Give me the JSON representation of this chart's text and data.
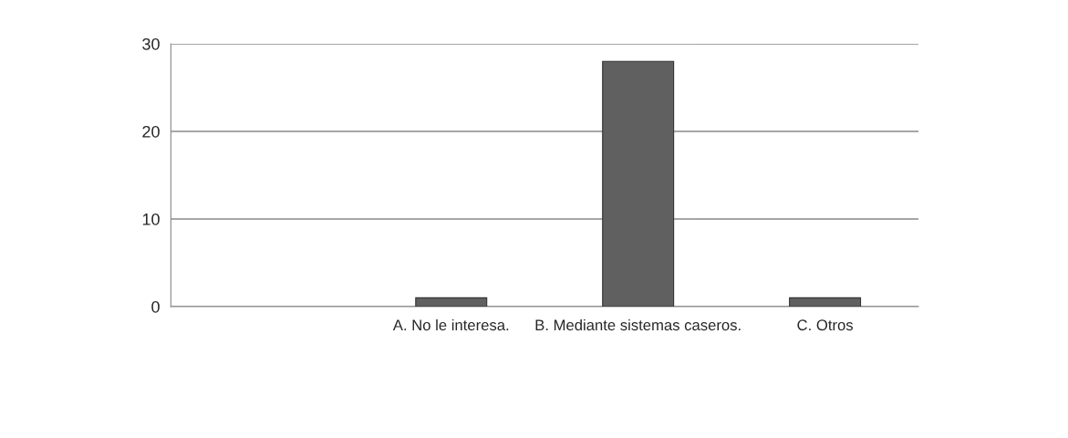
{
  "chart_data": {
    "type": "bar",
    "categories": [
      null,
      "A. No le interesa.",
      "B. Mediante sistemas caseros.",
      "C. Otros"
    ],
    "values": [
      null,
      1,
      28,
      1
    ],
    "color": "#606060",
    "ylim": [
      0,
      30
    ],
    "yticks": [
      0,
      10,
      20,
      30
    ],
    "grid": "y"
  }
}
